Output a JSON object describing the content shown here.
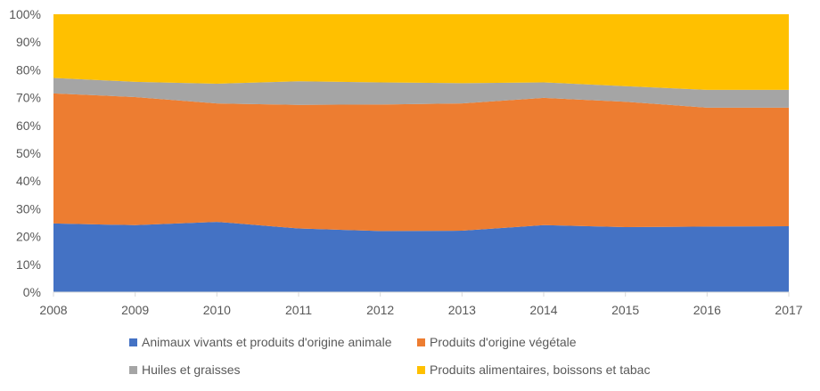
{
  "chart_data": {
    "type": "area",
    "stacking": "percent",
    "title": "",
    "xlabel": "",
    "ylabel": "",
    "categories": [
      "2008",
      "2009",
      "2010",
      "2011",
      "2012",
      "2013",
      "2014",
      "2015",
      "2016",
      "2017"
    ],
    "ylim": [
      0,
      100
    ],
    "yticks": [
      "0%",
      "10%",
      "20%",
      "30%",
      "40%",
      "50%",
      "60%",
      "70%",
      "80%",
      "90%",
      "100%"
    ],
    "legend_position": "bottom",
    "series": [
      {
        "name": "Animaux vivants et produits d'origine animale",
        "color": "#4472C4",
        "values": [
          24.7,
          24.1,
          25.3,
          22.9,
          22.0,
          22.1,
          24.1,
          23.4,
          23.6,
          23.7
        ]
      },
      {
        "name": "Produits d'origine végétale",
        "color": "#ED7D31",
        "values": [
          46.8,
          46.1,
          42.6,
          44.5,
          45.5,
          45.8,
          45.8,
          45.1,
          42.8,
          42.7
        ]
      },
      {
        "name": "Huiles et graisses",
        "color": "#A5A5A5",
        "values": [
          5.6,
          5.5,
          7.1,
          8.5,
          8.0,
          7.3,
          5.6,
          5.6,
          6.4,
          6.4
        ]
      },
      {
        "name": "Produits alimentaires, boissons et tabac",
        "color": "#FFC000",
        "values": [
          22.9,
          24.3,
          25.0,
          24.1,
          24.5,
          24.8,
          24.5,
          25.9,
          27.2,
          27.2
        ]
      }
    ]
  }
}
